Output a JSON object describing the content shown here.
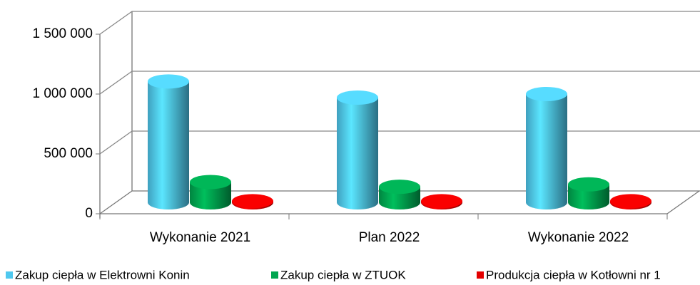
{
  "chart_data": {
    "type": "bar3d",
    "categories": [
      "Wykonanie 2021",
      "Plan 2022",
      "Wykonanie 2022"
    ],
    "series": [
      {
        "name": "Zakup ciepła w Elektrowni Konin",
        "color": "#4fc8ef",
        "values": [
          1010000,
          875000,
          905000
        ]
      },
      {
        "name": "Zakup ciepła w ZTUOK",
        "color": "#00a650",
        "values": [
          170000,
          130000,
          150000
        ]
      },
      {
        "name": "Produkcja ciepła w Kotłowni nr 1",
        "color": "#e30000",
        "values": [
          10000,
          10000,
          10000
        ]
      }
    ],
    "ylim": [
      0,
      1500000
    ],
    "yticks": [
      0,
      {
        "value": 500000,
        "label": "500 000"
      },
      {
        "value": 1000000,
        "label": "1 000 000"
      },
      {
        "value": 1500000,
        "label": "1 500 000"
      }
    ],
    "grid": true,
    "legend": "bottom"
  }
}
